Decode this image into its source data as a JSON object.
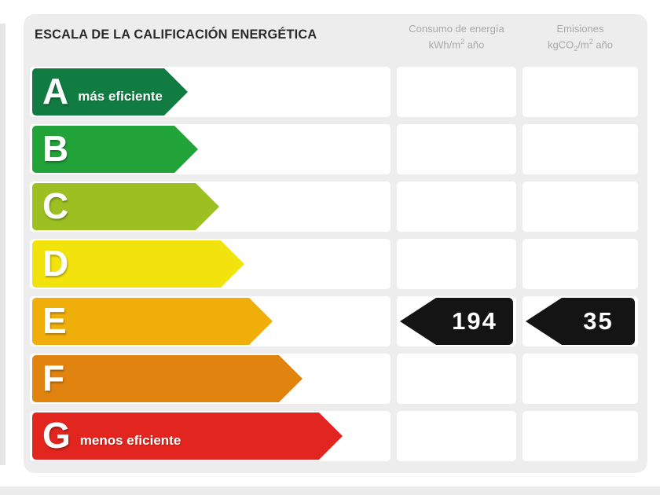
{
  "header": {
    "title": "ESCALA DE LA CALIFICACIÓN ENERGÉTICA",
    "col_consumo": {
      "title": "Consumo de energía",
      "unit_pre": "kWh/m",
      "unit_sup": "2",
      "unit_post": " año"
    },
    "col_emisiones": {
      "title": "Emisiones",
      "unit_pre": "kgCO",
      "unit_sub": "2",
      "unit_mid": "/m",
      "unit_sup": "2",
      "unit_post": " año"
    }
  },
  "scale": {
    "value_arrow_color": "#141414",
    "rows": [
      {
        "grade": "A",
        "note": "más eficiente",
        "color": "#107c41",
        "arrow_width": 198,
        "consumo": null,
        "emisiones": null
      },
      {
        "grade": "B",
        "note": "",
        "color": "#21a339",
        "arrow_width": 211,
        "consumo": null,
        "emisiones": null
      },
      {
        "grade": "C",
        "note": "",
        "color": "#9cc021",
        "arrow_width": 238,
        "consumo": null,
        "emisiones": null
      },
      {
        "grade": "D",
        "note": "",
        "color": "#f2e30c",
        "arrow_width": 270,
        "consumo": null,
        "emisiones": null
      },
      {
        "grade": "E",
        "note": "",
        "color": "#f0ae0b",
        "arrow_width": 306,
        "consumo": "194",
        "emisiones": "35"
      },
      {
        "grade": "F",
        "note": "",
        "color": "#e1840f",
        "arrow_width": 344,
        "consumo": null,
        "emisiones": null
      },
      {
        "grade": "G",
        "note": "menos eficiente",
        "color": "#e2251e",
        "arrow_width": 395,
        "consumo": null,
        "emisiones": null
      }
    ]
  },
  "chart_data": {
    "type": "bar",
    "title": "ESCALA DE LA CALIFICACIÓN ENERGÉTICA",
    "categories": [
      "A",
      "B",
      "C",
      "D",
      "E",
      "F",
      "G"
    ],
    "series": [
      {
        "name": "relative_arrow_length_px",
        "values": [
          198,
          211,
          238,
          270,
          306,
          344,
          395
        ]
      }
    ],
    "bar_colors": [
      "#107c41",
      "#21a339",
      "#9cc021",
      "#f2e30c",
      "#f0ae0b",
      "#e1840f",
      "#e2251e"
    ],
    "annotations": [
      "A = más eficiente",
      "G = menos eficiente"
    ],
    "columns": [
      "Consumo de energía kWh/m² año",
      "Emisiones kgCO₂/m² año"
    ],
    "highlighted_rating": "E",
    "values_for_rating": {
      "consumo_kwh_m2_ano": 194,
      "emisiones_kgco2_m2_ano": 35
    },
    "orientation": "horizontal",
    "grid": false,
    "legend_position": "none"
  }
}
